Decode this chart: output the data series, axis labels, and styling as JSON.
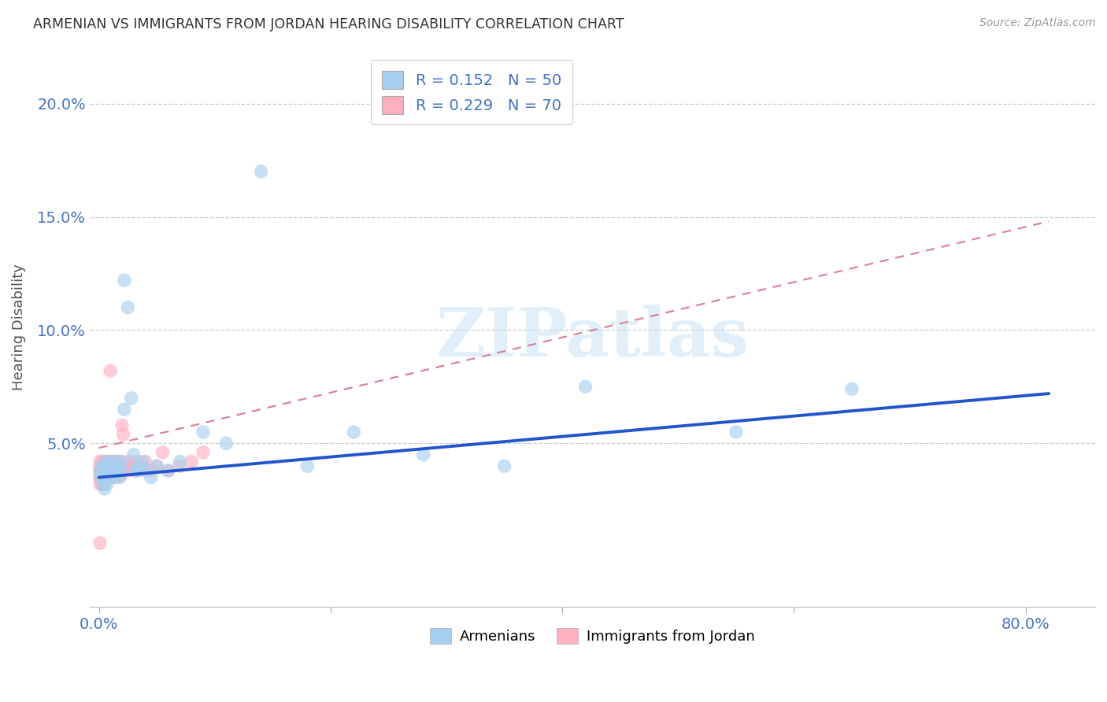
{
  "title": "ARMENIAN VS IMMIGRANTS FROM JORDAN HEARING DISABILITY CORRELATION CHART",
  "source": "Source: ZipAtlas.com",
  "ylabel": "Hearing Disability",
  "xlim": [
    -0.008,
    0.86
  ],
  "ylim": [
    -0.022,
    0.225
  ],
  "armenians_color": "#a8d0f0",
  "jordan_color": "#ffb0c0",
  "trendline1_color": "#2255cc",
  "trendline2_color": "#d9849a",
  "watermark": "ZIPatlas",
  "watermark_color": "#cce5f5",
  "legend_color1": "#a8d0f0",
  "legend_color2": "#ffb0c0",
  "legend1_r": "R = 0.152",
  "legend1_n": "N = 50",
  "legend2_r": "R = 0.229",
  "legend2_n": "N = 70",
  "armenians_x": [
    0.001,
    0.002,
    0.003,
    0.004,
    0.005,
    0.005,
    0.006,
    0.006,
    0.007,
    0.007,
    0.008,
    0.008,
    0.009,
    0.01,
    0.01,
    0.011,
    0.012,
    0.012,
    0.013,
    0.014,
    0.015,
    0.016,
    0.017,
    0.018,
    0.019,
    0.02,
    0.022,
    0.025,
    0.028,
    0.03,
    0.032,
    0.035,
    0.038,
    0.04,
    0.045,
    0.05,
    0.06,
    0.07,
    0.09,
    0.11,
    0.14,
    0.18,
    0.22,
    0.28,
    0.35,
    0.42,
    0.55,
    0.65,
    0.022,
    0.032
  ],
  "armenians_y": [
    0.038,
    0.035,
    0.04,
    0.032,
    0.038,
    0.03,
    0.035,
    0.042,
    0.038,
    0.032,
    0.04,
    0.035,
    0.038,
    0.036,
    0.042,
    0.038,
    0.035,
    0.04,
    0.038,
    0.042,
    0.036,
    0.038,
    0.04,
    0.035,
    0.038,
    0.042,
    0.122,
    0.11,
    0.07,
    0.045,
    0.038,
    0.04,
    0.042,
    0.038,
    0.035,
    0.04,
    0.038,
    0.042,
    0.055,
    0.05,
    0.17,
    0.04,
    0.055,
    0.045,
    0.04,
    0.075,
    0.055,
    0.074,
    0.065,
    0.038
  ],
  "jordan_x": [
    0.001,
    0.001,
    0.001,
    0.001,
    0.002,
    0.002,
    0.002,
    0.003,
    0.003,
    0.003,
    0.003,
    0.004,
    0.004,
    0.005,
    0.005,
    0.005,
    0.006,
    0.006,
    0.006,
    0.007,
    0.007,
    0.007,
    0.008,
    0.008,
    0.009,
    0.009,
    0.01,
    0.01,
    0.011,
    0.011,
    0.012,
    0.012,
    0.013,
    0.013,
    0.014,
    0.015,
    0.015,
    0.016,
    0.017,
    0.018,
    0.019,
    0.02,
    0.021,
    0.022,
    0.024,
    0.025,
    0.028,
    0.03,
    0.032,
    0.035,
    0.038,
    0.04,
    0.045,
    0.05,
    0.055,
    0.06,
    0.07,
    0.08,
    0.09,
    0.01,
    0.011,
    0.012,
    0.013,
    0.014,
    0.015,
    0.016,
    0.017,
    0.001,
    0.001,
    0.001
  ],
  "jordan_y": [
    0.038,
    0.035,
    0.04,
    0.032,
    0.036,
    0.04,
    0.038,
    0.035,
    0.042,
    0.038,
    0.032,
    0.04,
    0.036,
    0.038,
    0.042,
    0.035,
    0.036,
    0.04,
    0.038,
    0.035,
    0.042,
    0.038,
    0.036,
    0.04,
    0.038,
    0.042,
    0.035,
    0.038,
    0.036,
    0.04,
    0.038,
    0.042,
    0.036,
    0.04,
    0.038,
    0.042,
    0.035,
    0.038,
    0.04,
    0.042,
    0.036,
    0.058,
    0.054,
    0.038,
    0.04,
    0.042,
    0.038,
    0.04,
    0.042,
    0.038,
    0.04,
    0.042,
    0.038,
    0.04,
    0.046,
    0.038,
    0.04,
    0.042,
    0.046,
    0.082,
    0.038,
    0.04,
    0.038,
    0.042,
    0.038,
    0.04,
    0.038,
    0.042,
    0.036,
    0.006
  ],
  "trendline1_x0": 0.0,
  "trendline1_x1": 0.82,
  "trendline1_y0": 0.035,
  "trendline1_y1": 0.072,
  "trendline2_x0": 0.0,
  "trendline2_x1": 0.82,
  "trendline2_y0": 0.048,
  "trendline2_y1": 0.148
}
